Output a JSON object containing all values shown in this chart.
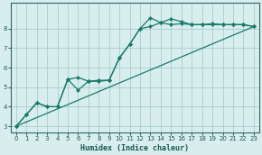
{
  "xlabel": "Humidex (Indice chaleur)",
  "bg_color": "#d8eeee",
  "grid_color": "#aacccc",
  "line_color": "#1a7a6a",
  "xlim": [
    -0.5,
    23.5
  ],
  "ylim": [
    2.7,
    9.3
  ],
  "xticks": [
    0,
    1,
    2,
    3,
    4,
    5,
    6,
    7,
    8,
    9,
    10,
    11,
    12,
    13,
    14,
    15,
    16,
    17,
    18,
    19,
    20,
    21,
    22,
    23
  ],
  "yticks": [
    3,
    4,
    5,
    6,
    7,
    8
  ],
  "line1_x": [
    0,
    1,
    2,
    3,
    4,
    5,
    6,
    7,
    8,
    9,
    10,
    11,
    12,
    13,
    14,
    15,
    16,
    17,
    18,
    19,
    20,
    21,
    22,
    23
  ],
  "line1_y": [
    3.0,
    3.6,
    4.2,
    4.0,
    4.0,
    5.4,
    4.85,
    5.3,
    5.3,
    5.35,
    6.5,
    7.2,
    8.0,
    8.55,
    8.3,
    8.2,
    8.25,
    8.2,
    8.2,
    8.2,
    8.2,
    8.2,
    8.2,
    8.1
  ],
  "line2_x": [
    0,
    1,
    2,
    3,
    4,
    5,
    6,
    7,
    8,
    9,
    10,
    11,
    12,
    13,
    14,
    15,
    16,
    17,
    18,
    19,
    20,
    21,
    22,
    23
  ],
  "line2_y": [
    3.0,
    3.6,
    4.2,
    4.0,
    4.0,
    5.4,
    5.5,
    5.3,
    5.35,
    5.35,
    6.5,
    7.2,
    8.0,
    8.1,
    8.3,
    8.5,
    8.35,
    8.2,
    8.2,
    8.25,
    8.2,
    8.2,
    8.2,
    8.1
  ],
  "line3_x": [
    0,
    23
  ],
  "line3_y": [
    3.0,
    8.1
  ]
}
